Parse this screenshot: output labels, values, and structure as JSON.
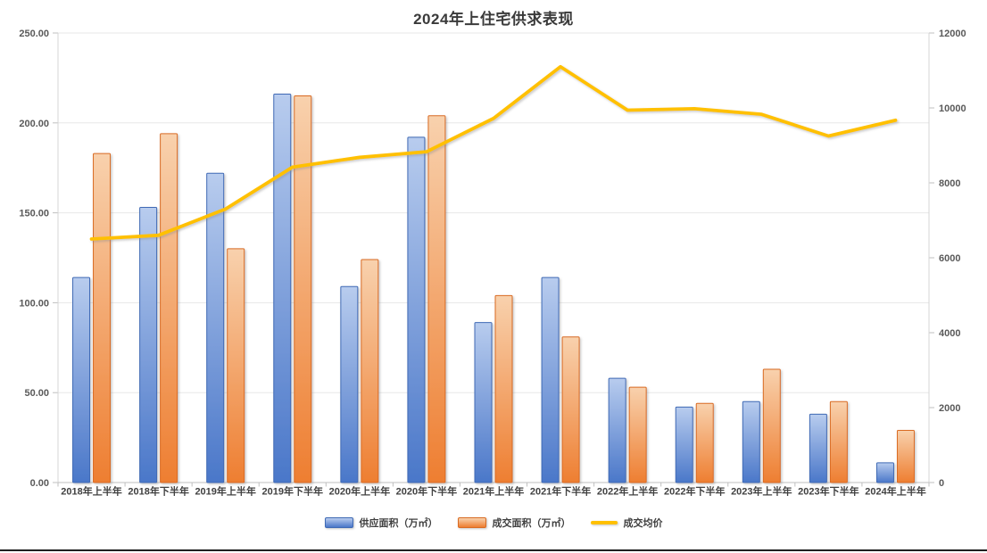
{
  "chart_data": {
    "type": "bar",
    "subtype": "combo-bar-line-dual-axis",
    "title": "2024年上住宅供求表现",
    "categories": [
      "2018年上半年",
      "2018年下半年",
      "2019年上半年",
      "2019年下半年",
      "2020年上半年",
      "2020年下半年",
      "2021年上半年",
      "2021年下半年",
      "2022年上半年",
      "2022年下半年",
      "2023年上半年",
      "2023年下半年",
      "2024年上半年"
    ],
    "series": [
      {
        "name": "供应面积（万㎡）",
        "type": "bar",
        "axis": "left",
        "color": "#4472C4",
        "gradient_top": "#b8ccee",
        "gradient_bottom": "#4a77c9",
        "border_color": "#3f6ab5",
        "values": [
          114,
          153,
          172,
          216,
          109,
          192,
          89,
          114,
          58,
          42,
          45,
          38,
          11
        ]
      },
      {
        "name": "成交面积（万㎡）",
        "type": "bar",
        "axis": "left",
        "color": "#ED7D31",
        "gradient_top": "#f8d1ad",
        "gradient_bottom": "#ee7e31",
        "border_color": "#d96b22",
        "values": [
          183,
          194,
          130,
          215,
          124,
          204,
          104,
          81,
          53,
          44,
          63,
          45,
          29
        ]
      },
      {
        "name": "成交均价",
        "type": "line",
        "axis": "right",
        "color": "#FFC000",
        "values": [
          6500,
          6600,
          7300,
          8420,
          8680,
          8830,
          9720,
          11100,
          9940,
          9980,
          9830,
          9250,
          9670
        ]
      }
    ],
    "left_axis": {
      "min": 0,
      "max": 250,
      "step": 50,
      "tick_labels": [
        "0.00",
        "50.00",
        "100.00",
        "150.00",
        "200.00",
        "250.00"
      ]
    },
    "right_axis": {
      "min": 0,
      "max": 12000,
      "step": 2000,
      "tick_labels": [
        "0",
        "2000",
        "4000",
        "6000",
        "8000",
        "10000",
        "12000"
      ]
    },
    "grid": true,
    "legend_position": "bottom"
  },
  "style_colors": {
    "grid_line": "#e7e7e7",
    "axis_line": "#bfbfbf",
    "axis_side_line": "#d6d6d6",
    "tick_label": "#595959",
    "category_label": "#404040",
    "title": "#3a3a3a"
  }
}
